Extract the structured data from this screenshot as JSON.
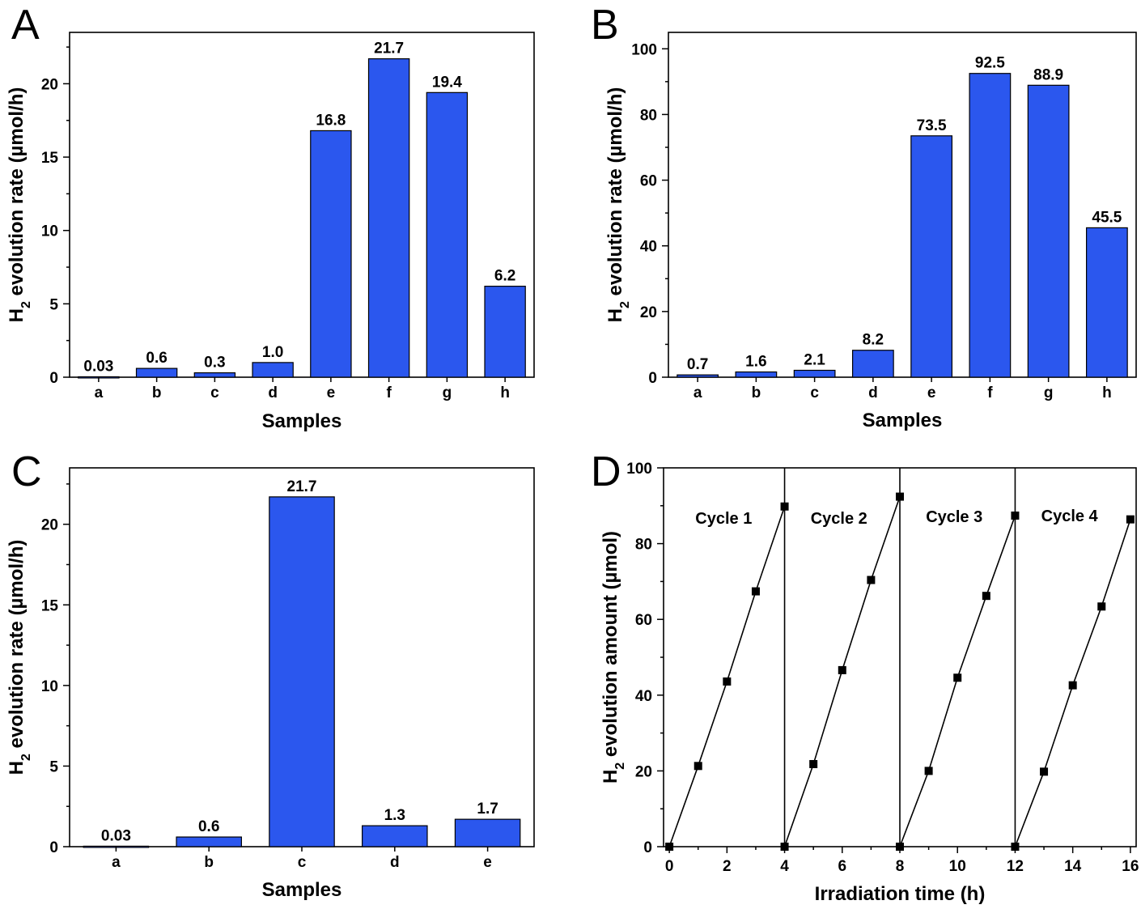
{
  "chart_data": [
    {
      "panel": "A",
      "type": "bar",
      "categories": [
        "a",
        "b",
        "c",
        "d",
        "e",
        "f",
        "g",
        "h"
      ],
      "values": [
        0.03,
        0.6,
        0.3,
        1.0,
        16.8,
        21.7,
        19.4,
        6.2
      ],
      "labels": [
        "0.03",
        "0.6",
        "0.3",
        "1.0",
        "16.8",
        "21.7",
        "19.4",
        "6.2"
      ],
      "xlabel": "Samples",
      "ylabel_main": "H",
      "ylabel_sub": "2",
      "ylabel_rest": " evolution rate (µmol/h)",
      "ylim": [
        0,
        23.5
      ],
      "yticks": [
        0,
        5,
        10,
        15,
        20
      ],
      "color": "#2b57ee"
    },
    {
      "panel": "B",
      "type": "bar",
      "categories": [
        "a",
        "b",
        "c",
        "d",
        "e",
        "f",
        "g",
        "h"
      ],
      "values": [
        0.7,
        1.6,
        2.1,
        8.2,
        73.5,
        92.5,
        88.9,
        45.5
      ],
      "labels": [
        "0.7",
        "1.6",
        "2.1",
        "8.2",
        "73.5",
        "92.5",
        "88.9",
        "45.5"
      ],
      "xlabel": "Samples",
      "ylabel_main": "H",
      "ylabel_sub": "2",
      "ylabel_rest": " evolution rate (µmol/h)",
      "ylim": [
        0,
        105
      ],
      "yticks": [
        0,
        20,
        40,
        60,
        80,
        100
      ],
      "color": "#2b57ee"
    },
    {
      "panel": "C",
      "type": "bar",
      "categories": [
        "a",
        "b",
        "c",
        "d",
        "e"
      ],
      "values": [
        0.03,
        0.6,
        21.7,
        1.3,
        1.7
      ],
      "labels": [
        "0.03",
        "0.6",
        "21.7",
        "1.3",
        "1.7"
      ],
      "xlabel": "Samples",
      "ylabel_main": "H",
      "ylabel_sub": "2",
      "ylabel_rest": " evolution rate (µmol/h)",
      "ylim": [
        0,
        23.5
      ],
      "yticks": [
        0,
        5,
        10,
        15,
        20
      ],
      "color": "#2b57ee"
    },
    {
      "panel": "D",
      "type": "line",
      "xlabel": "Irradiation time (h)",
      "ylabel_main": "H",
      "ylabel_sub": "2",
      "ylabel_rest": " evolution amount (µmol)",
      "xlim": [
        -0.2,
        16.2
      ],
      "ylim": [
        0,
        100
      ],
      "xticks": [
        0,
        2,
        4,
        6,
        8,
        10,
        12,
        14,
        16
      ],
      "yticks": [
        0,
        20,
        40,
        60,
        80,
        100
      ],
      "dividers": [
        4,
        8,
        12
      ],
      "series": [
        {
          "name": "Cycle 1",
          "x": [
            0,
            1,
            2,
            3,
            4
          ],
          "y": [
            0,
            21.3,
            43.6,
            67.4,
            89.8
          ]
        },
        {
          "name": "Cycle 2",
          "x": [
            4,
            5,
            6,
            7,
            8
          ],
          "y": [
            0,
            21.8,
            46.6,
            70.4,
            92.4
          ]
        },
        {
          "name": "Cycle 3",
          "x": [
            8,
            9,
            10,
            11,
            12
          ],
          "y": [
            0,
            20.0,
            44.6,
            66.2,
            87.4
          ]
        },
        {
          "name": "Cycle 4",
          "x": [
            12,
            13,
            14,
            15,
            16
          ],
          "y": [
            0,
            19.8,
            42.6,
            63.4,
            86.4
          ]
        }
      ],
      "annotations": [
        "Cycle 1",
        "Cycle 2",
        "Cycle 3",
        "Cycle 4"
      ]
    }
  ]
}
